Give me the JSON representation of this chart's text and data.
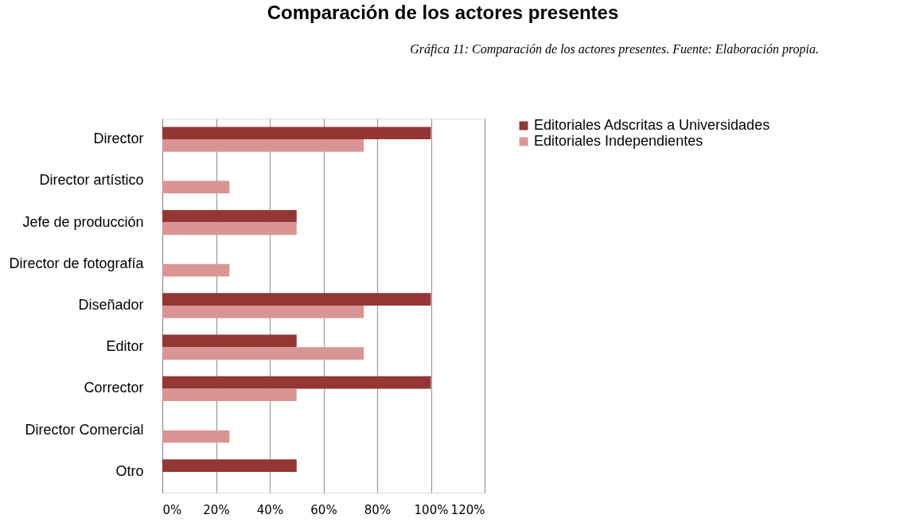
{
  "chart_data": {
    "type": "bar",
    "orientation": "horizontal",
    "title": "Comparación de los actores presentes",
    "annotations": [
      "Gráfica 11: Comparación de los actores presentes. Fuente: Elaboración propia."
    ],
    "categories": [
      "Director",
      "Director artístico",
      "Jefe de producción",
      "Director de fotografía",
      "Diseñador",
      "Editor",
      "Corrector",
      "Director Comercial",
      "Otro"
    ],
    "series": [
      {
        "name": "Editoriales Adscritas a Universidades",
        "color": "#943634",
        "values": [
          100,
          null,
          50,
          null,
          100,
          50,
          100,
          null,
          50
        ]
      },
      {
        "name": "Editoriales Independientes",
        "color": "#d99594",
        "values": [
          75,
          25,
          50,
          25,
          75,
          75,
          50,
          25,
          null
        ]
      }
    ],
    "xlim": [
      0,
      120
    ],
    "xticks": [
      {
        "value": 0,
        "label": "0%"
      },
      {
        "value": 20,
        "label": "20%"
      },
      {
        "value": 40,
        "label": "40%"
      },
      {
        "value": 60,
        "label": "60%"
      },
      {
        "value": 80,
        "label": "80%"
      },
      {
        "value": 100,
        "label": "100%"
      },
      {
        "value": 120,
        "label": "120%"
      }
    ],
    "grid": "x",
    "legend": "right"
  }
}
